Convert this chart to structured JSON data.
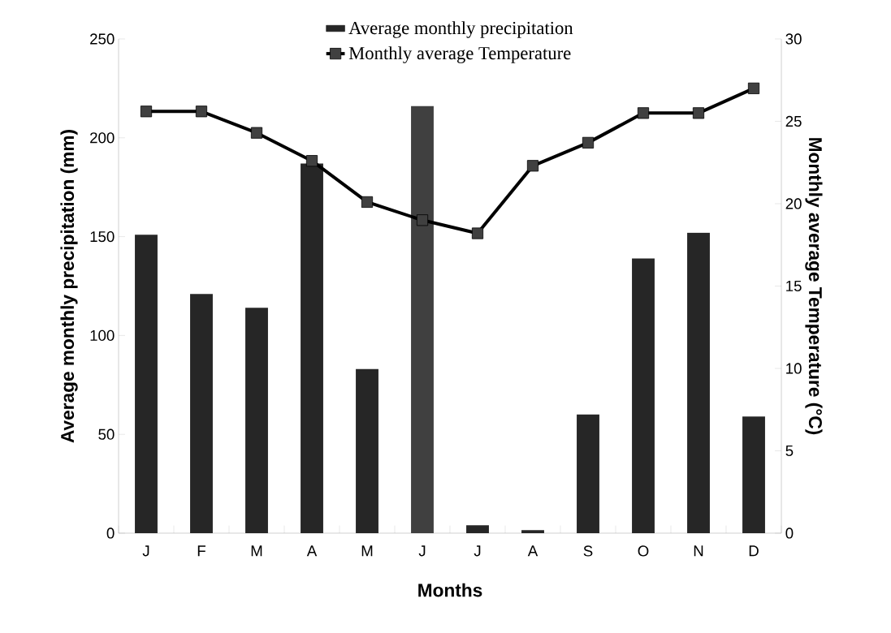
{
  "chart_data": {
    "type": "bar",
    "xlabel": "Months",
    "ylabel": "Average monthly precipitation (mm)",
    "y2label": "Monthly average Temperature (°C)",
    "categories": [
      "J",
      "F",
      "M",
      "A",
      "M",
      "J",
      "J",
      "A",
      "S",
      "O",
      "N",
      "D"
    ],
    "series": [
      {
        "name": "Average  monthly precipitation",
        "colors": [
          "#262626",
          "#262626",
          "#262626",
          "#262626",
          "#262626",
          "#404040",
          "#262626",
          "#262626",
          "#262626",
          "#262626",
          "#262626",
          "#262626"
        ],
        "values": [
          151,
          121,
          114,
          187,
          83,
          216,
          4,
          1.5,
          60,
          139,
          152,
          59
        ]
      },
      {
        "name": "Monthly average Temperature",
        "type": "line",
        "axis": "y2",
        "color": "#000000",
        "values": [
          25.6,
          25.6,
          24.3,
          22.6,
          20.1,
          19.0,
          18.2,
          22.3,
          23.7,
          25.5,
          25.5,
          27.0
        ]
      }
    ],
    "ylim": [
      0,
      250
    ],
    "yticks": [
      0,
      50,
      100,
      150,
      200,
      250
    ],
    "y2lim": [
      0,
      30
    ],
    "y2ticks": [
      0,
      5,
      10,
      15,
      20,
      25,
      30
    ],
    "marker": "square",
    "legend": "top",
    "grid": false
  }
}
